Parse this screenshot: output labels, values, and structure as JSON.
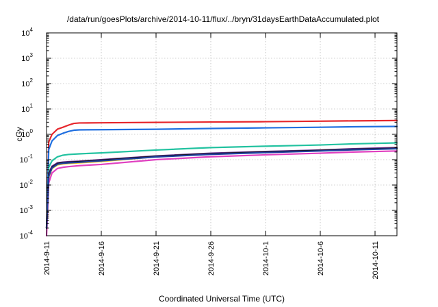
{
  "chart_data": {
    "type": "line",
    "title": "/data/run/goesPlots/archive/2014-10-11/flux/../bryn/31daysEarthDataAccumulated.plot",
    "xlabel": "Coordinated Universal Time (UTC)",
    "ylabel": "cGy",
    "x_unit": "days after 2014-9-11",
    "xlim": [
      0,
      32
    ],
    "ylim": [
      0.0001,
      10000
    ],
    "yscale": "log",
    "grid": true,
    "legend": "none",
    "x_ticks": [
      {
        "x": 0,
        "label": "2014-9-11"
      },
      {
        "x": 5,
        "label": "2014-9-16"
      },
      {
        "x": 10,
        "label": "2014-9-21"
      },
      {
        "x": 15,
        "label": "2014-9-26"
      },
      {
        "x": 20,
        "label": "2014-10-1"
      },
      {
        "x": 25,
        "label": "2014-10-6"
      },
      {
        "x": 30,
        "label": "2014-10-11"
      }
    ],
    "y_ticks": [
      {
        "v": 0.0001,
        "base": "10",
        "exp": "-4"
      },
      {
        "v": 0.001,
        "base": "10",
        "exp": "-3"
      },
      {
        "v": 0.01,
        "base": "10",
        "exp": "-2"
      },
      {
        "v": 0.1,
        "base": "10",
        "exp": "-1"
      },
      {
        "v": 1,
        "base": "10",
        "exp": "0"
      },
      {
        "v": 10,
        "base": "10",
        "exp": "1"
      },
      {
        "v": 100,
        "base": "10",
        "exp": "2"
      },
      {
        "v": 1000,
        "base": "10",
        "exp": "3"
      },
      {
        "v": 10000,
        "base": "10",
        "exp": "4"
      }
    ],
    "series": [
      {
        "color": "#e6262c",
        "x": [
          0,
          0.2,
          0.5,
          1,
          1.5,
          2,
          2.5,
          3,
          5,
          10,
          15,
          20,
          25,
          28,
          32
        ],
        "y": [
          0.0002,
          0.5,
          1.0,
          1.6,
          1.9,
          2.3,
          2.7,
          2.8,
          2.85,
          2.95,
          3.05,
          3.15,
          3.3,
          3.4,
          3.5
        ]
      },
      {
        "color": "#1f6fe0",
        "x": [
          0,
          0.2,
          0.5,
          1,
          1.5,
          2,
          2.5,
          3,
          5,
          10,
          15,
          20,
          25,
          28,
          32
        ],
        "y": [
          0.0002,
          0.25,
          0.55,
          0.9,
          1.1,
          1.3,
          1.45,
          1.5,
          1.52,
          1.58,
          1.7,
          1.8,
          1.9,
          1.98,
          2.05
        ]
      },
      {
        "color": "#22c2a0",
        "x": [
          0,
          0.2,
          0.5,
          1,
          1.5,
          2,
          3,
          5,
          10,
          15,
          20,
          25,
          28,
          32
        ],
        "y": [
          0.0002,
          0.05,
          0.09,
          0.13,
          0.15,
          0.16,
          0.17,
          0.185,
          0.24,
          0.3,
          0.34,
          0.38,
          0.42,
          0.46
        ]
      },
      {
        "color": "#f0d020",
        "x": [
          0,
          0.2,
          0.5,
          1,
          1.5,
          2,
          3,
          5,
          10,
          15,
          20,
          25,
          28,
          32
        ],
        "y": [
          0.0002,
          0.02,
          0.045,
          0.062,
          0.068,
          0.071,
          0.075,
          0.085,
          0.13,
          0.17,
          0.2,
          0.23,
          0.26,
          0.29
        ]
      },
      {
        "color": "#e040c0",
        "x": [
          0,
          0.2,
          0.5,
          1,
          1.5,
          2,
          3,
          5,
          10,
          15,
          20,
          25,
          28,
          32
        ],
        "y": [
          0.0001,
          0.012,
          0.03,
          0.045,
          0.05,
          0.053,
          0.058,
          0.065,
          0.1,
          0.13,
          0.155,
          0.18,
          0.2,
          0.22
        ]
      },
      {
        "color": "#6a3090",
        "x": [
          0,
          0.2,
          0.5,
          1,
          1.5,
          2,
          3,
          5,
          10,
          15,
          20,
          25,
          28,
          32
        ],
        "y": [
          0.0002,
          0.03,
          0.055,
          0.075,
          0.08,
          0.083,
          0.087,
          0.1,
          0.14,
          0.18,
          0.21,
          0.24,
          0.27,
          0.3
        ]
      },
      {
        "color": "#111111",
        "x": [
          0,
          0.2,
          0.5,
          1,
          1.5,
          2,
          3,
          5,
          10,
          15,
          20,
          25,
          28,
          32
        ],
        "y": [
          0.0002,
          0.025,
          0.05,
          0.07,
          0.076,
          0.079,
          0.083,
          0.095,
          0.135,
          0.17,
          0.2,
          0.23,
          0.255,
          0.28
        ]
      },
      {
        "color": "#2040a0",
        "x": [
          0,
          0.2,
          0.5,
          1,
          1.5,
          2,
          3,
          5,
          10,
          15,
          20,
          25,
          28,
          32
        ],
        "y": [
          0.0002,
          0.022,
          0.047,
          0.066,
          0.072,
          0.075,
          0.079,
          0.09,
          0.128,
          0.162,
          0.19,
          0.22,
          0.245,
          0.27
        ]
      }
    ]
  }
}
